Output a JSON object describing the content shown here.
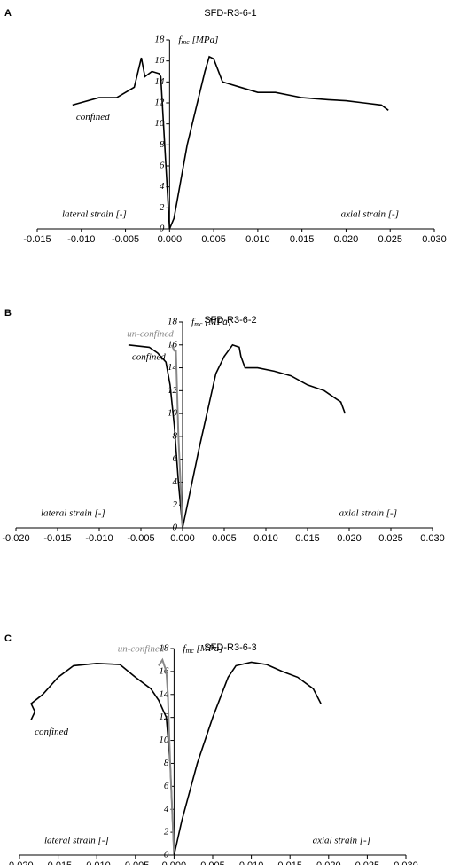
{
  "chart_data": [
    {
      "type": "line",
      "label": "A",
      "title": "SFD-R3-6-1",
      "ylabel": [
        "f",
        "mc",
        " [MPa]"
      ],
      "annotations": {
        "lateral": "lateral strain [-]",
        "axial": "axial strain [-]"
      },
      "xlim": [
        -0.015,
        0.03
      ],
      "ylim": [
        0,
        18
      ],
      "xticks": [
        {
          "value": -0.015,
          "label": "-0.015"
        },
        {
          "value": -0.01,
          "label": "-0.010"
        },
        {
          "value": -0.005,
          "label": "-0.005"
        },
        {
          "value": 0,
          "label": "0.000"
        },
        {
          "value": 0.005,
          "label": "0.005"
        },
        {
          "value": 0.01,
          "label": "0.010"
        },
        {
          "value": 0.015,
          "label": "0.015"
        },
        {
          "value": 0.02,
          "label": "0.020"
        },
        {
          "value": 0.025,
          "label": "0.025"
        },
        {
          "value": 0.03,
          "label": "0.030"
        }
      ],
      "yticks": [
        0,
        2,
        4,
        6,
        8,
        10,
        12,
        14,
        16,
        18
      ],
      "series": [
        {
          "name": "confined",
          "color": "#000000",
          "x": [
            -0.011,
            -0.008,
            -0.006,
            -0.005,
            -0.004,
            -0.0032,
            -0.0028,
            -0.002,
            -0.0012,
            -0.001,
            0
          ],
          "values": [
            11.8,
            12.5,
            12.5,
            13,
            13.5,
            16.3,
            14.5,
            15,
            14.8,
            14.5,
            0
          ]
        },
        {
          "color": "#000000",
          "x": [
            0,
            0.0005,
            0.002,
            0.004,
            0.0045,
            0.005,
            0.006,
            0.008,
            0.01,
            0.012,
            0.015,
            0.018,
            0.02,
            0.022,
            0.024,
            0.0248
          ],
          "values": [
            0,
            1,
            8,
            15,
            16.4,
            16.2,
            14,
            13.5,
            13,
            13,
            12.5,
            12.3,
            12.2,
            12,
            11.8,
            11.3
          ]
        }
      ]
    },
    {
      "type": "line",
      "label": "B",
      "title": "SFD-R3-6-2",
      "ylabel": [
        "f",
        "mc",
        " [MPa]"
      ],
      "annotations": {
        "lateral": "lateral strain [-]",
        "axial": "axial strain [-]"
      },
      "xlim": [
        -0.02,
        0.03
      ],
      "ylim": [
        0,
        18
      ],
      "xticks": [
        {
          "value": -0.02,
          "label": "-0.020"
        },
        {
          "value": -0.015,
          "label": "-0.015"
        },
        {
          "value": -0.01,
          "label": "-0.010"
        },
        {
          "value": -0.005,
          "label": "-0.005"
        },
        {
          "value": 0,
          "label": "0.000"
        },
        {
          "value": 0.005,
          "label": "0.005"
        },
        {
          "value": 0.01,
          "label": "0.010"
        },
        {
          "value": 0.015,
          "label": "0.015"
        },
        {
          "value": 0.02,
          "label": "0.020"
        },
        {
          "value": 0.025,
          "label": "0.025"
        },
        {
          "value": 0.03,
          "label": "0.030"
        }
      ],
      "yticks": [
        0,
        2,
        4,
        6,
        8,
        10,
        12,
        14,
        16,
        18
      ],
      "series": [
        {
          "name": "confined",
          "color": "#000000",
          "x": [
            -0.0065,
            -0.004,
            -0.003,
            -0.002,
            -0.0015,
            -0.001,
            -0.0005,
            0
          ],
          "values": [
            16,
            15.8,
            15.3,
            14.5,
            12.5,
            9,
            4,
            0
          ]
        },
        {
          "name": "un-confined",
          "color": "#888888",
          "x": [
            -0.0013,
            -0.001,
            -0.0008,
            -0.0005,
            0
          ],
          "values": [
            16,
            15.5,
            15.5,
            8,
            0
          ]
        },
        {
          "color": "#000000",
          "x": [
            0,
            0.002,
            0.004,
            0.005,
            0.006,
            0.0068,
            0.007,
            0.0075,
            0.009,
            0.011,
            0.013,
            0.015,
            0.017,
            0.018,
            0.019,
            0.0195
          ],
          "values": [
            0,
            7,
            13.5,
            15,
            16,
            15.8,
            15,
            14,
            14,
            13.7,
            13.3,
            12.5,
            12,
            11.5,
            11,
            10
          ]
        }
      ]
    },
    {
      "type": "line",
      "label": "C",
      "title": "SFD-R3-6-3",
      "ylabel": [
        "f",
        "mc",
        " [MPa]"
      ],
      "annotations": {
        "lateral": "lateral strain [-]",
        "axial": "axial strain [-]"
      },
      "xlim": [
        -0.02,
        0.03
      ],
      "ylim": [
        0,
        18
      ],
      "xticks": [
        {
          "value": -0.02,
          "label": "-0.020"
        },
        {
          "value": -0.015,
          "label": "-0.015"
        },
        {
          "value": -0.01,
          "label": "-0.010"
        },
        {
          "value": -0.005,
          "label": "-0.005"
        },
        {
          "value": 0,
          "label": "0.000"
        },
        {
          "value": 0.005,
          "label": "0.005"
        },
        {
          "value": 0.01,
          "label": "0.010"
        },
        {
          "value": 0.015,
          "label": "0.015"
        },
        {
          "value": 0.02,
          "label": "0.020"
        },
        {
          "value": 0.025,
          "label": "0.025"
        },
        {
          "value": 0.03,
          "label": "0.030"
        }
      ],
      "yticks": [
        0,
        2,
        4,
        6,
        8,
        10,
        12,
        14,
        16,
        18
      ],
      "series": [
        {
          "name": "confined",
          "color": "#000000",
          "x": [
            -0.0185,
            -0.018,
            -0.0185,
            -0.017,
            -0.015,
            -0.013,
            -0.01,
            -0.007,
            -0.005,
            -0.003,
            -0.002,
            -0.001,
            -0.0005,
            0
          ],
          "values": [
            11.8,
            12.5,
            13.2,
            14,
            15.5,
            16.5,
            16.7,
            16.6,
            15.5,
            14.5,
            13.5,
            12,
            8,
            0
          ]
        },
        {
          "name": "un-confined",
          "color": "#888888",
          "x": [
            -0.002,
            -0.0015,
            -0.001,
            -0.0008,
            -0.0005,
            0
          ],
          "values": [
            16.5,
            17,
            16,
            14,
            8,
            0
          ]
        },
        {
          "color": "#000000",
          "x": [
            0,
            0.001,
            0.003,
            0.005,
            0.007,
            0.008,
            0.01,
            0.012,
            0.014,
            0.016,
            0.018,
            0.019
          ],
          "values": [
            0,
            3,
            8,
            12,
            15.5,
            16.5,
            16.8,
            16.6,
            16,
            15.5,
            14.5,
            13.2
          ]
        }
      ]
    }
  ]
}
